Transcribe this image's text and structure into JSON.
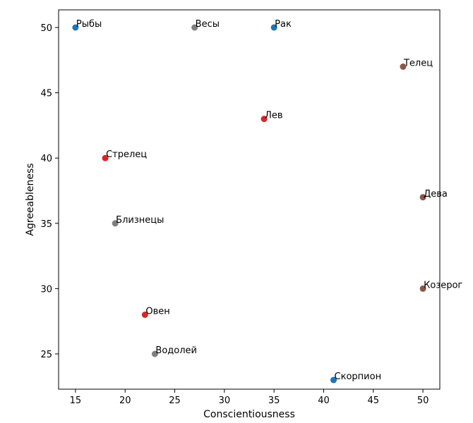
{
  "chart_data": {
    "type": "scatter",
    "xlabel": "Conscientiousness",
    "ylabel": "Agreeableness",
    "xlim": [
      13.3,
      51.7
    ],
    "ylim": [
      22.3,
      51.35
    ],
    "xticks": [
      15,
      20,
      25,
      30,
      35,
      40,
      45,
      50
    ],
    "yticks": [
      25,
      30,
      35,
      40,
      45,
      50
    ],
    "grid": false,
    "points": [
      {
        "label": "Рыбы",
        "x": 15,
        "y": 50,
        "color": "#1f77b4"
      },
      {
        "label": "Весы",
        "x": 27,
        "y": 50,
        "color": "#7f7f7f"
      },
      {
        "label": "Рак",
        "x": 35,
        "y": 50,
        "color": "#1f77b4"
      },
      {
        "label": "Телец",
        "x": 48,
        "y": 47,
        "color": "#8c564b"
      },
      {
        "label": "Лев",
        "x": 34,
        "y": 43,
        "color": "#d62728"
      },
      {
        "label": "Стрелец",
        "x": 18,
        "y": 40,
        "color": "#d62728"
      },
      {
        "label": "Дева",
        "x": 50,
        "y": 37,
        "color": "#8c564b"
      },
      {
        "label": "Близнецы",
        "x": 19,
        "y": 35,
        "color": "#7f7f7f"
      },
      {
        "label": "Козерог",
        "x": 50,
        "y": 30,
        "color": "#8c564b"
      },
      {
        "label": "Овен",
        "x": 22,
        "y": 28,
        "color": "#d62728"
      },
      {
        "label": "Водолей",
        "x": 23,
        "y": 25,
        "color": "#7f7f7f"
      },
      {
        "label": "Скорпион",
        "x": 41,
        "y": 23,
        "color": "#1f77b4"
      }
    ]
  }
}
